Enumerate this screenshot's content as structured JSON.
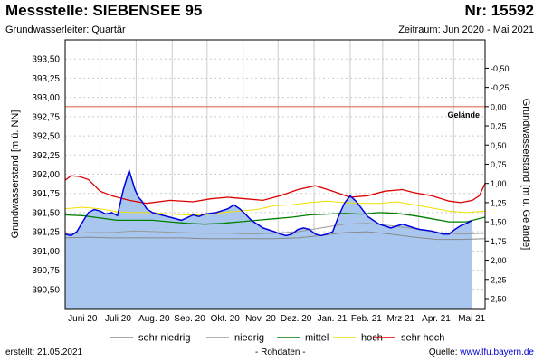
{
  "header": {
    "title": "Messstelle: SIEBENSEE 95",
    "number": "Nr: 15592",
    "aquifer": "Grundwasserleiter: Quartär",
    "period": "Zeitraum: Jun 2020 - Mai 2021"
  },
  "footer": {
    "created_label": "erstellt:",
    "created_date": "21.05.2021",
    "raw_data": "- Rohdaten -",
    "source_label": "Quelle:",
    "source_link": "www.lfu.bayern.de"
  },
  "colors": {
    "water_fill": "#a9c7ee",
    "water_line": "#0000dd",
    "sehr_niedrig": "#888888",
    "niedrig": "#9a9a9a",
    "mittel": "#008000",
    "hoch": "#f0e000",
    "sehr_hoch": "#dd0000",
    "gelaende": "#e07050",
    "grid": "#cccccc"
  },
  "chart_data": {
    "type": "line",
    "ylabel_left": "Grundwasserstand [m ü. NN]",
    "ylabel_right": "Grundwasserstand [m u. Gelände]",
    "ylim_left": [
      390.25,
      393.75
    ],
    "yticks_left": [
      "390,50",
      "390,75",
      "391,00",
      "391,25",
      "391,50",
      "391,75",
      "392,00",
      "392,25",
      "392,50",
      "392,75",
      "393,00",
      "393,25",
      "393,50"
    ],
    "ground_level": 392.88,
    "ground_label": "Gelände",
    "yticks_right": [
      "-0,50",
      "-0,25",
      "0,00",
      "0,25",
      "0,50",
      "0,75",
      "1,00",
      "1,25",
      "1,50",
      "1,75",
      "2,00",
      "2,25",
      "2,50"
    ],
    "months": [
      "Juni 20",
      "Juli 20",
      "Aug. 20",
      "Sep. 20",
      "Okt. 20",
      "Nov. 20",
      "Dez. 20",
      "Jan. 21",
      "Feb. 21",
      "Mrz 21",
      "Apr. 21",
      "Mai 21"
    ],
    "x_range_days": [
      0,
      361
    ],
    "series": [
      {
        "name": "sehr niedrig",
        "key": "sehr_niedrig",
        "x": [
          0,
          20,
          40,
          60,
          80,
          100,
          120,
          140,
          160,
          180,
          200,
          220,
          240,
          260,
          280,
          300,
          320,
          340,
          361
        ],
        "y": [
          391.17,
          391.18,
          391.17,
          391.17,
          391.17,
          391.17,
          391.16,
          391.16,
          391.16,
          391.16,
          391.17,
          391.2,
          391.24,
          391.25,
          391.22,
          391.18,
          391.15,
          391.15,
          391.16
        ]
      },
      {
        "name": "niedrig",
        "key": "niedrig",
        "x": [
          0,
          20,
          40,
          60,
          80,
          100,
          120,
          140,
          160,
          180,
          200,
          220,
          240,
          260,
          280,
          300,
          320,
          340,
          361
        ],
        "y": [
          391.22,
          391.24,
          391.24,
          391.26,
          391.25,
          391.24,
          391.23,
          391.23,
          391.22,
          391.23,
          391.25,
          391.3,
          391.35,
          391.36,
          391.33,
          391.29,
          391.24,
          391.22,
          391.23
        ]
      },
      {
        "name": "mittel",
        "key": "mittel",
        "x": [
          0,
          15,
          30,
          45,
          60,
          75,
          90,
          105,
          120,
          135,
          150,
          165,
          180,
          195,
          210,
          225,
          240,
          255,
          270,
          285,
          300,
          315,
          330,
          345,
          361
        ],
        "y": [
          391.47,
          391.46,
          391.43,
          391.4,
          391.4,
          391.4,
          391.38,
          391.36,
          391.35,
          391.36,
          391.38,
          391.4,
          391.42,
          391.44,
          391.47,
          391.48,
          391.49,
          391.48,
          391.5,
          391.49,
          391.46,
          391.42,
          391.38,
          391.38,
          391.44
        ]
      },
      {
        "name": "hoch",
        "key": "hoch",
        "x": [
          0,
          15,
          30,
          45,
          60,
          75,
          90,
          105,
          120,
          135,
          150,
          165,
          180,
          195,
          210,
          225,
          240,
          255,
          270,
          285,
          300,
          315,
          330,
          345,
          361
        ],
        "y": [
          391.55,
          391.57,
          391.55,
          391.51,
          391.5,
          391.5,
          391.48,
          391.47,
          391.47,
          391.5,
          391.52,
          391.54,
          391.59,
          391.6,
          391.63,
          391.65,
          391.63,
          391.62,
          391.62,
          391.64,
          391.6,
          391.56,
          391.52,
          391.5,
          391.52
        ]
      },
      {
        "name": "sehr hoch",
        "key": "sehr_hoch",
        "x": [
          0,
          5,
          12,
          20,
          30,
          40,
          55,
          70,
          90,
          110,
          125,
          140,
          155,
          170,
          185,
          200,
          215,
          230,
          245,
          260,
          275,
          290,
          300,
          315,
          330,
          340,
          350,
          356,
          361
        ],
        "y": [
          391.92,
          391.98,
          391.97,
          391.93,
          391.78,
          391.72,
          391.66,
          391.62,
          391.66,
          391.64,
          391.68,
          391.7,
          391.68,
          391.66,
          391.72,
          391.8,
          391.85,
          391.78,
          391.7,
          391.72,
          391.78,
          391.8,
          391.76,
          391.72,
          391.65,
          391.63,
          391.66,
          391.72,
          391.88
        ]
      },
      {
        "name": "Rohdaten",
        "key": "water",
        "x": [
          0,
          5,
          10,
          15,
          20,
          25,
          30,
          35,
          40,
          45,
          50,
          55,
          60,
          63,
          66,
          70,
          75,
          80,
          90,
          100,
          110,
          115,
          120,
          130,
          140,
          145,
          150,
          155,
          160,
          170,
          180,
          185,
          190,
          195,
          200,
          205,
          210,
          215,
          220,
          225,
          230,
          235,
          240,
          245,
          250,
          255,
          260,
          270,
          280,
          290,
          300,
          305,
          310,
          315,
          320,
          325,
          330,
          335,
          340,
          345,
          350
        ],
        "y": [
          391.22,
          391.2,
          391.25,
          391.38,
          391.5,
          391.54,
          391.52,
          391.48,
          391.5,
          391.46,
          391.8,
          392.05,
          391.8,
          391.7,
          391.65,
          391.55,
          391.5,
          391.48,
          391.44,
          391.4,
          391.47,
          391.45,
          391.48,
          391.5,
          391.55,
          391.6,
          391.55,
          391.48,
          391.4,
          391.3,
          391.25,
          391.22,
          391.2,
          391.22,
          391.28,
          391.3,
          391.28,
          391.22,
          391.2,
          391.22,
          391.25,
          391.45,
          391.62,
          391.72,
          391.65,
          391.55,
          391.45,
          391.35,
          391.3,
          391.35,
          391.3,
          391.28,
          391.27,
          391.26,
          391.24,
          391.22,
          391.22,
          391.28,
          391.33,
          391.36,
          391.4
        ]
      }
    ],
    "legend": {
      "position": "bottom",
      "items": [
        "sehr niedrig",
        "niedrig",
        "mittel",
        "hoch",
        "sehr hoch"
      ]
    },
    "grid": true
  }
}
